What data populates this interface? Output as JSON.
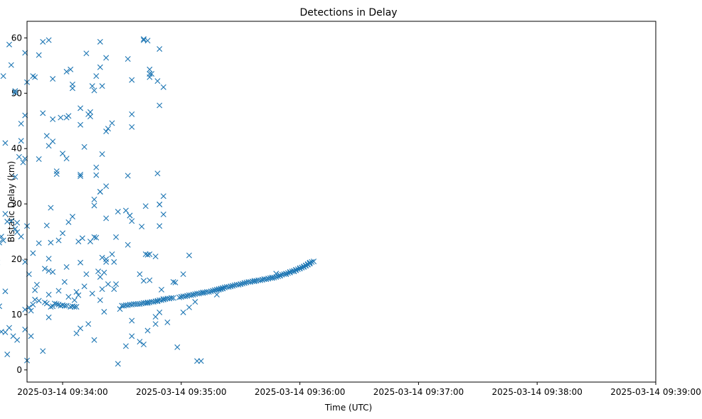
{
  "chart_data": {
    "type": "scatter",
    "title": "Detections in Delay",
    "xlabel": "Time (UTC)",
    "ylabel": "Bistatic Delay (km)",
    "x_ticks": [
      "2025-03-14 09:34:00",
      "2025-03-14 09:35:00",
      "2025-03-14 09:36:00",
      "2025-03-14 09:37:00",
      "2025-03-14 09:38:00",
      "2025-03-14 09:39:00"
    ],
    "y_ticks": [
      0,
      10,
      20,
      30,
      40,
      50,
      60
    ],
    "xlim": [
      "2025-03-14 09:33:42",
      "2025-03-14 09:39:00"
    ],
    "ylim": [
      -2.2,
      63
    ],
    "grid": false,
    "marker": "x",
    "color": "#1f77b4",
    "x_unit": "seconds after 2025-03-14 09:33:00",
    "points": [
      [
        24,
        42.6
      ],
      [
        24,
        8.5
      ],
      [
        25,
        53.8
      ],
      [
        25,
        51.9
      ],
      [
        25,
        47.6
      ],
      [
        25,
        11.5
      ],
      [
        26,
        22.9
      ],
      [
        27,
        34.3
      ],
      [
        27,
        19.4
      ],
      [
        28,
        23.0
      ],
      [
        28,
        11.5
      ],
      [
        29,
        24.1
      ],
      [
        29,
        6.9
      ],
      [
        30,
        53.1
      ],
      [
        30,
        23.4
      ],
      [
        31,
        28.2
      ],
      [
        31,
        41.0
      ],
      [
        31,
        14.2
      ],
      [
        31,
        6.8
      ],
      [
        32,
        26.8
      ],
      [
        32,
        2.8
      ],
      [
        33,
        58.8
      ],
      [
        33,
        7.6
      ],
      [
        34,
        55.1
      ],
      [
        34,
        26.9
      ],
      [
        35,
        6.1
      ],
      [
        36,
        50.4
      ],
      [
        36,
        34.9
      ],
      [
        36,
        25.5
      ],
      [
        36,
        50.1
      ],
      [
        37,
        26.6
      ],
      [
        37,
        5.4
      ],
      [
        37,
        24.9
      ],
      [
        38,
        38.5
      ],
      [
        39,
        24.1
      ],
      [
        39,
        44.5
      ],
      [
        39,
        41.4
      ],
      [
        40,
        37.5
      ],
      [
        41,
        57.3
      ],
      [
        41,
        46.0
      ],
      [
        41,
        38.2
      ],
      [
        41,
        19.5
      ],
      [
        41,
        10.9
      ],
      [
        41,
        7.3
      ],
      [
        42,
        52.0
      ],
      [
        42,
        1.7
      ],
      [
        42,
        26.0
      ],
      [
        43,
        17.3
      ],
      [
        43,
        11.3
      ],
      [
        44,
        10.7
      ],
      [
        44,
        6.1
      ],
      [
        45,
        53.1
      ],
      [
        45,
        21.1
      ],
      [
        45,
        11.8
      ],
      [
        46,
        52.9
      ],
      [
        46,
        14.4
      ],
      [
        46,
        12.7
      ],
      [
        47,
        15.4
      ],
      [
        48,
        38.1
      ],
      [
        48,
        56.9
      ],
      [
        48,
        22.9
      ],
      [
        48,
        12.5
      ],
      [
        50,
        59.3
      ],
      [
        50,
        46.4
      ],
      [
        50,
        3.4
      ],
      [
        51,
        18.3
      ],
      [
        51,
        12.2
      ],
      [
        52,
        42.3
      ],
      [
        52,
        26.1
      ],
      [
        52,
        12.0
      ],
      [
        53,
        59.6
      ],
      [
        53,
        40.5
      ],
      [
        53,
        20.1
      ],
      [
        53,
        17.9
      ],
      [
        53,
        9.5
      ],
      [
        53,
        13.6
      ],
      [
        54,
        29.3
      ],
      [
        54,
        11.4
      ],
      [
        54,
        23.0
      ],
      [
        55,
        52.6
      ],
      [
        55,
        45.3
      ],
      [
        55,
        41.3
      ],
      [
        55,
        17.7
      ],
      [
        55,
        11.5
      ],
      [
        56,
        12.0
      ],
      [
        57,
        35.9
      ],
      [
        57,
        35.4
      ],
      [
        57,
        11.9
      ],
      [
        58,
        11.8
      ],
      [
        58,
        14.3
      ],
      [
        58,
        23.4
      ],
      [
        59,
        45.6
      ],
      [
        59,
        11.6
      ],
      [
        60,
        39.1
      ],
      [
        60,
        24.7
      ],
      [
        60,
        11.7
      ],
      [
        61,
        11.6
      ],
      [
        61,
        15.9
      ],
      [
        62,
        45.6
      ],
      [
        62,
        38.2
      ],
      [
        62,
        53.9
      ],
      [
        62,
        11.6
      ],
      [
        62,
        18.6
      ],
      [
        63,
        45.9
      ],
      [
        63,
        13.2
      ],
      [
        63,
        26.7
      ],
      [
        64,
        11.4
      ],
      [
        64,
        54.3
      ],
      [
        65,
        27.7
      ],
      [
        65,
        50.9
      ],
      [
        65,
        51.6
      ],
      [
        65,
        11.5
      ],
      [
        66,
        11.4
      ],
      [
        66,
        12.6
      ],
      [
        67,
        11.4
      ],
      [
        67,
        14.1
      ],
      [
        67,
        6.6
      ],
      [
        68,
        23.2
      ],
      [
        68,
        13.5
      ],
      [
        69,
        47.3
      ],
      [
        69,
        35.3
      ],
      [
        69,
        44.3
      ],
      [
        69,
        19.4
      ],
      [
        69,
        35.0
      ],
      [
        69,
        7.5
      ],
      [
        70,
        23.8
      ],
      [
        71,
        40.3
      ],
      [
        71,
        15.1
      ],
      [
        72,
        57.2
      ],
      [
        72,
        17.3
      ],
      [
        73,
        8.3
      ],
      [
        73,
        46.2
      ],
      [
        74,
        23.2
      ],
      [
        74,
        45.8
      ],
      [
        74,
        46.6
      ],
      [
        75,
        51.3
      ],
      [
        75,
        13.8
      ],
      [
        76,
        29.7
      ],
      [
        76,
        30.8
      ],
      [
        76,
        50.5
      ],
      [
        76,
        24.0
      ],
      [
        76,
        5.4
      ],
      [
        77,
        53.1
      ],
      [
        77,
        23.9
      ],
      [
        77,
        36.6
      ],
      [
        77,
        35.2
      ],
      [
        78,
        17.8
      ],
      [
        79,
        54.7
      ],
      [
        79,
        59.3
      ],
      [
        79,
        32.2
      ],
      [
        79,
        32.2
      ],
      [
        79,
        16.8
      ],
      [
        79,
        12.6
      ],
      [
        80,
        51.3
      ],
      [
        80,
        20.3
      ],
      [
        80,
        39.0
      ],
      [
        80,
        14.6
      ],
      [
        81,
        10.5
      ],
      [
        81,
        17.6
      ],
      [
        82,
        56.4
      ],
      [
        82,
        43.1
      ],
      [
        82,
        33.2
      ],
      [
        82,
        19.5
      ],
      [
        82,
        27.4
      ],
      [
        82,
        20.0
      ],
      [
        83,
        43.6
      ],
      [
        83,
        15.5
      ],
      [
        85,
        44.6
      ],
      [
        85,
        20.9
      ],
      [
        86,
        14.6
      ],
      [
        86,
        19.5
      ],
      [
        87,
        15.5
      ],
      [
        87,
        24.0
      ],
      [
        88,
        1.1
      ],
      [
        88,
        28.6
      ],
      [
        89,
        11.0
      ],
      [
        90,
        11.6
      ],
      [
        90,
        11.6
      ],
      [
        91,
        11.6
      ],
      [
        92,
        4.3
      ],
      [
        92,
        28.8
      ],
      [
        92,
        11.7
      ],
      [
        93,
        56.2
      ],
      [
        93,
        35.1
      ],
      [
        93,
        11.7
      ],
      [
        93,
        22.6
      ],
      [
        94,
        27.9
      ],
      [
        94,
        27.9
      ],
      [
        94,
        11.8
      ],
      [
        95,
        46.2
      ],
      [
        95,
        43.9
      ],
      [
        95,
        52.4
      ],
      [
        95,
        11.8
      ],
      [
        95,
        26.9
      ],
      [
        95,
        6.1
      ],
      [
        95,
        8.9
      ],
      [
        96,
        11.9
      ],
      [
        97,
        11.9
      ],
      [
        98,
        11.9
      ],
      [
        99,
        11.9
      ],
      [
        99,
        17.3
      ],
      [
        99,
        5.1
      ],
      [
        100,
        12.0
      ],
      [
        100,
        25.9
      ],
      [
        101,
        59.8
      ],
      [
        101,
        59.6
      ],
      [
        101,
        4.6
      ],
      [
        101,
        12.1
      ],
      [
        101,
        16.1
      ],
      [
        102,
        20.9
      ],
      [
        102,
        29.6
      ],
      [
        102,
        12.1
      ],
      [
        102,
        12.1
      ],
      [
        103,
        7.1
      ],
      [
        103,
        59.5
      ],
      [
        103,
        20.8
      ],
      [
        103,
        12.1
      ],
      [
        103,
        12.2
      ],
      [
        104,
        53.5
      ],
      [
        104,
        54.3
      ],
      [
        104,
        52.9
      ],
      [
        104,
        20.9
      ],
      [
        104,
        16.2
      ],
      [
        104,
        12.2
      ],
      [
        105,
        53.5
      ],
      [
        105,
        12.3
      ],
      [
        106,
        12.3
      ],
      [
        107,
        8.3
      ],
      [
        107,
        9.6
      ],
      [
        107,
        12.4
      ],
      [
        107,
        20.5
      ],
      [
        108,
        52.2
      ],
      [
        108,
        35.5
      ],
      [
        108,
        12.4
      ],
      [
        108,
        12.5
      ],
      [
        109,
        58.0
      ],
      [
        109,
        47.8
      ],
      [
        109,
        29.9
      ],
      [
        109,
        26.0
      ],
      [
        109,
        29.9
      ],
      [
        109,
        10.4
      ],
      [
        109,
        12.6
      ],
      [
        110,
        12.6
      ],
      [
        110,
        14.5
      ],
      [
        111,
        51.1
      ],
      [
        111,
        31.4
      ],
      [
        111,
        12.7
      ],
      [
        111,
        28.1
      ],
      [
        111,
        12.8
      ],
      [
        112,
        12.8
      ],
      [
        113,
        8.6
      ],
      [
        113,
        12.9
      ],
      [
        114,
        12.9
      ],
      [
        115,
        13.0
      ],
      [
        115,
        13.0
      ],
      [
        116,
        13.0
      ],
      [
        116,
        15.9
      ],
      [
        117,
        15.8
      ],
      [
        118,
        4.1
      ],
      [
        119,
        13.1
      ],
      [
        120,
        13.2
      ],
      [
        120,
        13.2
      ],
      [
        121,
        13.3
      ],
      [
        121,
        17.3
      ],
      [
        121,
        10.4
      ],
      [
        122,
        13.3
      ],
      [
        123,
        13.4
      ],
      [
        123,
        13.4
      ],
      [
        124,
        13.5
      ],
      [
        124,
        20.7
      ],
      [
        124,
        11.3
      ],
      [
        125,
        13.5
      ],
      [
        126,
        13.6
      ],
      [
        126,
        13.6
      ],
      [
        127,
        13.7
      ],
      [
        127,
        12.3
      ],
      [
        128,
        1.6
      ],
      [
        128,
        13.8
      ],
      [
        129,
        13.8
      ],
      [
        130,
        13.9
      ],
      [
        130,
        1.6
      ],
      [
        131,
        13.9
      ],
      [
        131,
        14.0
      ],
      [
        132,
        14.0
      ],
      [
        133,
        14.1
      ],
      [
        134,
        14.1
      ],
      [
        135,
        14.2
      ],
      [
        136,
        14.3
      ],
      [
        136,
        14.3
      ],
      [
        137,
        14.4
      ],
      [
        137,
        14.4
      ],
      [
        138,
        14.5
      ],
      [
        138,
        14.5
      ],
      [
        138,
        13.6
      ],
      [
        139,
        14.5
      ],
      [
        139,
        14.6
      ],
      [
        140,
        14.6
      ],
      [
        140,
        14.7
      ],
      [
        141,
        14.7
      ],
      [
        141,
        14.8
      ],
      [
        142,
        14.9
      ],
      [
        142,
        14.9
      ],
      [
        143,
        15.0
      ],
      [
        144,
        15.0
      ],
      [
        145,
        15.1
      ],
      [
        145,
        15.1
      ],
      [
        146,
        15.2
      ],
      [
        146,
        15.2
      ],
      [
        147,
        15.3
      ],
      [
        148,
        15.4
      ],
      [
        149,
        15.4
      ],
      [
        150,
        15.5
      ],
      [
        150,
        15.5
      ],
      [
        151,
        15.6
      ],
      [
        152,
        15.7
      ],
      [
        152,
        15.7
      ],
      [
        153,
        15.8
      ],
      [
        154,
        15.9
      ],
      [
        155,
        15.9
      ],
      [
        156,
        16.0
      ],
      [
        157,
        16.0
      ],
      [
        157,
        16.1
      ],
      [
        158,
        16.1
      ],
      [
        159,
        16.2
      ],
      [
        160,
        16.2
      ],
      [
        161,
        16.3
      ],
      [
        161,
        16.3
      ],
      [
        162,
        16.4
      ],
      [
        162,
        16.4
      ],
      [
        163,
        16.4
      ],
      [
        164,
        16.5
      ],
      [
        164,
        16.5
      ],
      [
        165,
        16.6
      ],
      [
        166,
        16.6
      ],
      [
        166,
        16.7
      ],
      [
        167,
        16.7
      ],
      [
        168,
        17.4
      ],
      [
        168,
        16.8
      ],
      [
        169,
        16.9
      ],
      [
        170,
        17.0
      ],
      [
        170,
        17.1
      ],
      [
        171,
        17.2
      ],
      [
        172,
        17.3
      ],
      [
        173,
        17.3
      ],
      [
        173,
        17.4
      ],
      [
        174,
        17.5
      ],
      [
        175,
        17.6
      ],
      [
        175,
        17.7
      ],
      [
        176,
        17.8
      ],
      [
        177,
        17.8
      ],
      [
        177,
        17.9
      ],
      [
        178,
        18.0
      ],
      [
        178,
        18.1
      ],
      [
        179,
        18.2
      ],
      [
        180,
        18.3
      ],
      [
        180,
        18.4
      ],
      [
        181,
        18.5
      ],
      [
        181,
        18.5
      ],
      [
        182,
        18.6
      ],
      [
        182,
        18.7
      ],
      [
        183,
        18.8
      ],
      [
        183,
        18.9
      ],
      [
        184,
        19.0
      ],
      [
        184,
        19.1
      ],
      [
        184,
        19.1
      ],
      [
        185,
        19.2
      ],
      [
        185,
        19.3
      ],
      [
        185,
        19.4
      ],
      [
        186,
        19.5
      ],
      [
        187,
        19.6
      ]
    ]
  }
}
